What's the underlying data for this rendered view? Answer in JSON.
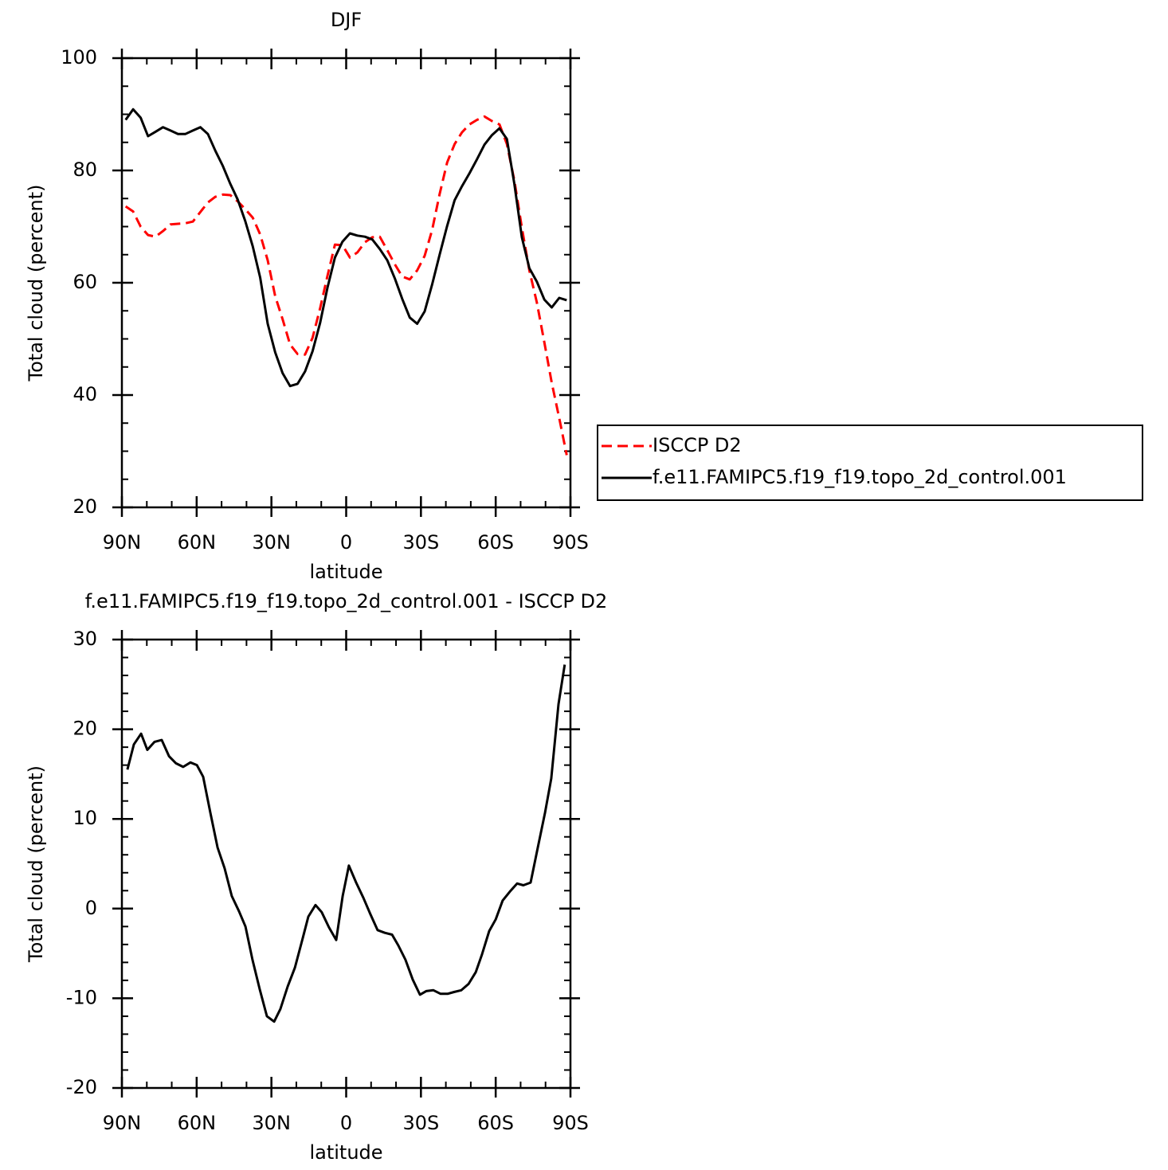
{
  "chart_data": [
    {
      "type": "line",
      "title": "DJF",
      "xlabel": "latitude",
      "ylabel": "Total cloud (percent)",
      "xlim": [
        90,
        -90
      ],
      "xticks": [
        {
          "value": 90,
          "label": "90N"
        },
        {
          "value": 60,
          "label": "60N"
        },
        {
          "value": 30,
          "label": "30N"
        },
        0,
        {
          "value": -30,
          "label": "30S"
        },
        {
          "value": -60,
          "label": "60S"
        },
        {
          "value": -90,
          "label": "90S"
        }
      ],
      "ylim": [
        20,
        100
      ],
      "yticks": [
        20,
        40,
        60,
        80,
        100
      ],
      "xminor_step": 10,
      "yminor_step": 5,
      "legend": "right",
      "x": [
        88.5,
        85.5,
        82.5,
        79.5,
        76.5,
        73.5,
        70.5,
        67.5,
        64.5,
        61.5,
        58.5,
        55.5,
        52.5,
        49.5,
        46.5,
        43.5,
        40.5,
        37.5,
        34.5,
        31.5,
        28.5,
        25.5,
        22.5,
        19.5,
        16.5,
        13.5,
        10.5,
        7.5,
        4.5,
        1.5,
        -1.5,
        -4.5,
        -7.5,
        -10.5,
        -13.5,
        -16.5,
        -19.5,
        -22.5,
        -25.5,
        -28.5,
        -31.5,
        -34.5,
        -37.5,
        -40.5,
        -43.5,
        -46.5,
        -49.5,
        -52.5,
        -55.5,
        -58.5,
        -61.5,
        -64.5,
        -67.5,
        -70.5,
        -73.5,
        -76.5,
        -79.5,
        -82.5,
        -85.5,
        -88.5
      ],
      "series": [
        {
          "name": "ISCCP D2",
          "color": "#ff0000",
          "dashed": true,
          "values": [
            73.6,
            72.7,
            70.0,
            68.5,
            68.2,
            69.2,
            70.4,
            70.5,
            70.6,
            70.9,
            72.6,
            74.3,
            75.3,
            75.7,
            75.6,
            74.5,
            73.1,
            71.6,
            68.6,
            64.0,
            57.6,
            53.5,
            49.0,
            47.3,
            47.2,
            50.2,
            55.4,
            61.2,
            66.8,
            66.7,
            64.5,
            65.4,
            67.2,
            68.1,
            68.2,
            65.8,
            63.3,
            61.1,
            60.6,
            62.2,
            64.8,
            69.4,
            75.8,
            81.4,
            84.7,
            86.8,
            88.2,
            89.0,
            89.6,
            88.8,
            88.2,
            84.7,
            78.2,
            69.8,
            62.2,
            56.5,
            49.4,
            42.2,
            35.9,
            29.3
          ]
        },
        {
          "name": "f.e11.FAMIPC5.f19_f19.topo_2d_control.001",
          "color": "#000000",
          "dashed": false,
          "values": [
            89.0,
            90.9,
            89.4,
            86.1,
            86.9,
            87.7,
            87.1,
            86.5,
            86.5,
            87.1,
            87.7,
            86.5,
            83.5,
            80.8,
            77.6,
            74.8,
            71.0,
            66.5,
            60.9,
            52.7,
            47.6,
            43.9,
            41.6,
            42.0,
            44.2,
            47.8,
            52.8,
            59.1,
            64.5,
            67.3,
            68.8,
            68.4,
            68.2,
            67.7,
            66.0,
            64.0,
            60.8,
            57.1,
            53.8,
            52.7,
            54.9,
            59.7,
            65.0,
            70.1,
            74.7,
            77.2,
            79.5,
            82.0,
            84.6,
            86.3,
            87.5,
            85.6,
            77.6,
            68.1,
            62.6,
            60.2,
            57.0,
            55.6,
            57.3,
            56.9
          ]
        }
      ]
    },
    {
      "type": "line",
      "title": "f.e11.FAMIPC5.f19_f19.topo_2d_control.001 - ISCCP D2",
      "xlabel": "latitude",
      "ylabel": "Total cloud (percent)",
      "xlim": [
        90,
        -90
      ],
      "xticks": [
        {
          "value": 90,
          "label": "90N"
        },
        {
          "value": 60,
          "label": "60N"
        },
        {
          "value": 30,
          "label": "30N"
        },
        0,
        {
          "value": -30,
          "label": "30S"
        },
        {
          "value": -60,
          "label": "60S"
        },
        {
          "value": -90,
          "label": "90S"
        }
      ],
      "ylim": [
        -20,
        30
      ],
      "yticks": [
        -20,
        -10,
        0,
        10,
        20,
        30
      ],
      "xminor_step": 10,
      "yminor_step": 2,
      "x": [
        87.8,
        85.2,
        82.3,
        79.8,
        76.9,
        74.0,
        71.1,
        68.3,
        65.4,
        62.5,
        59.9,
        57.4,
        54.5,
        51.6,
        48.8,
        45.9,
        43.0,
        40.4,
        37.6,
        34.7,
        31.8,
        28.9,
        26.4,
        23.5,
        20.6,
        17.7,
        15.2,
        12.3,
        9.8,
        6.9,
        4.0,
        1.4,
        -1.1,
        -4.0,
        -6.9,
        -9.7,
        -12.6,
        -15.5,
        -18.4,
        -20.9,
        -23.8,
        -26.7,
        -29.6,
        -32.1,
        -35.0,
        -37.9,
        -40.7,
        -43.3,
        -46.2,
        -49.1,
        -52.0,
        -54.5,
        -57.4,
        -60.0,
        -62.8,
        -65.7,
        -68.6,
        -71.1,
        -74.0,
        -76.9,
        -79.8,
        -82.3,
        -85.2,
        -87.7
      ],
      "series": [
        {
          "color": "#000000",
          "dashed": false,
          "values": [
            15.5,
            18.3,
            19.5,
            17.7,
            18.6,
            18.8,
            17.0,
            16.2,
            15.8,
            16.3,
            16.0,
            14.7,
            10.7,
            6.8,
            4.5,
            1.4,
            -0.3,
            -2.0,
            -5.7,
            -9.0,
            -12.0,
            -12.6,
            -11.2,
            -8.7,
            -6.6,
            -3.6,
            -0.9,
            0.4,
            -0.4,
            -2.1,
            -3.5,
            1.4,
            4.8,
            2.9,
            1.2,
            -0.6,
            -2.4,
            -2.7,
            -2.9,
            -4.1,
            -5.7,
            -7.9,
            -9.6,
            -9.2,
            -9.1,
            -9.5,
            -9.5,
            -9.3,
            -9.1,
            -8.4,
            -7.1,
            -5.1,
            -2.5,
            -1.2,
            0.9,
            1.9,
            2.8,
            2.6,
            2.9,
            6.8,
            10.7,
            14.5,
            22.8,
            27.2
          ]
        }
      ]
    }
  ]
}
